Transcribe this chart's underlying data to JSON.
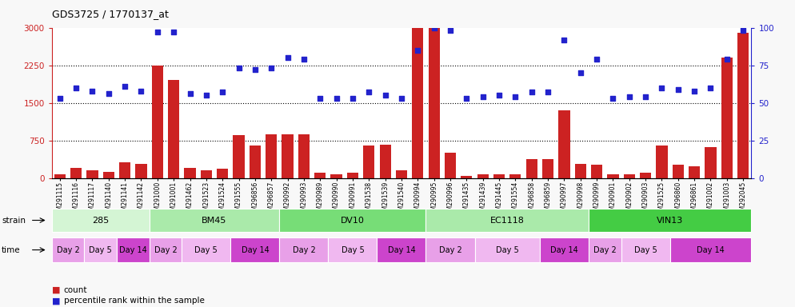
{
  "title": "GDS3725 / 1770137_at",
  "samples": [
    "GSM291115",
    "GSM291116",
    "GSM291117",
    "GSM291140",
    "GSM291141",
    "GSM291142",
    "GSM291000",
    "GSM291001",
    "GSM291462",
    "GSM291523",
    "GSM291524",
    "GSM291555",
    "GSM296856",
    "GSM296857",
    "GSM290992",
    "GSM290993",
    "GSM290989",
    "GSM290990",
    "GSM290991",
    "GSM291538",
    "GSM291539",
    "GSM291540",
    "GSM290994",
    "GSM290995",
    "GSM290996",
    "GSM291435",
    "GSM291439",
    "GSM291445",
    "GSM291554",
    "GSM296858",
    "GSM296859",
    "GSM290997",
    "GSM290998",
    "GSM290999",
    "GSM290901",
    "GSM290902",
    "GSM290903",
    "GSM291525",
    "GSM296860",
    "GSM296861",
    "GSM291002",
    "GSM291003",
    "GSM292045"
  ],
  "counts": [
    80,
    200,
    150,
    130,
    310,
    280,
    2250,
    1950,
    200,
    160,
    180,
    850,
    650,
    870,
    880,
    870,
    100,
    80,
    100,
    650,
    660,
    150,
    3000,
    3000,
    500,
    50,
    80,
    80,
    80,
    380,
    380,
    1350,
    280,
    270,
    80,
    80,
    100,
    650,
    270,
    230,
    620,
    2400,
    2900
  ],
  "percentiles": [
    53,
    60,
    58,
    56,
    61,
    58,
    97,
    97,
    56,
    55,
    57,
    73,
    72,
    73,
    80,
    79,
    53,
    53,
    53,
    57,
    55,
    53,
    85,
    100,
    98,
    53,
    54,
    55,
    54,
    57,
    57,
    92,
    70,
    79,
    53,
    54,
    54,
    60,
    59,
    58,
    60,
    79,
    98
  ],
  "ylim_left": [
    0,
    3000
  ],
  "ylim_right": [
    0,
    100
  ],
  "yticks_left": [
    0,
    750,
    1500,
    2250,
    3000
  ],
  "yticks_right": [
    0,
    25,
    50,
    75,
    100
  ],
  "strains": [
    {
      "label": "285",
      "start": 0,
      "end": 6,
      "color": "#d4f5d4"
    },
    {
      "label": "BM45",
      "start": 6,
      "end": 14,
      "color": "#aaeaaa"
    },
    {
      "label": "DV10",
      "start": 14,
      "end": 23,
      "color": "#77dd77"
    },
    {
      "label": "EC1118",
      "start": 23,
      "end": 33,
      "color": "#aaeaaa"
    },
    {
      "label": "VIN13",
      "start": 33,
      "end": 43,
      "color": "#44cc44"
    }
  ],
  "times": [
    {
      "label": "Day 2",
      "start": 0,
      "end": 2,
      "color": "#e8a0e8"
    },
    {
      "label": "Day 5",
      "start": 2,
      "end": 4,
      "color": "#f0b8f0"
    },
    {
      "label": "Day 14",
      "start": 4,
      "end": 6,
      "color": "#cc44cc"
    },
    {
      "label": "Day 2",
      "start": 6,
      "end": 8,
      "color": "#e8a0e8"
    },
    {
      "label": "Day 5",
      "start": 8,
      "end": 11,
      "color": "#f0b8f0"
    },
    {
      "label": "Day 14",
      "start": 11,
      "end": 14,
      "color": "#cc44cc"
    },
    {
      "label": "Day 2",
      "start": 14,
      "end": 17,
      "color": "#e8a0e8"
    },
    {
      "label": "Day 5",
      "start": 17,
      "end": 20,
      "color": "#f0b8f0"
    },
    {
      "label": "Day 14",
      "start": 20,
      "end": 23,
      "color": "#cc44cc"
    },
    {
      "label": "Day 2",
      "start": 23,
      "end": 26,
      "color": "#e8a0e8"
    },
    {
      "label": "Day 5",
      "start": 26,
      "end": 30,
      "color": "#f0b8f0"
    },
    {
      "label": "Day 14",
      "start": 30,
      "end": 33,
      "color": "#cc44cc"
    },
    {
      "label": "Day 2",
      "start": 33,
      "end": 35,
      "color": "#e8a0e8"
    },
    {
      "label": "Day 5",
      "start": 35,
      "end": 38,
      "color": "#f0b8f0"
    },
    {
      "label": "Day 14",
      "start": 38,
      "end": 43,
      "color": "#cc44cc"
    }
  ],
  "bar_color": "#cc2222",
  "dot_color": "#2222cc",
  "fig_bg": "#f8f8f8"
}
